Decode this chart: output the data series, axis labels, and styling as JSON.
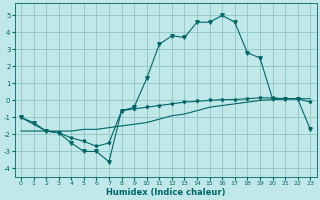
{
  "xlabel": "Humidex (Indice chaleur)",
  "bg_color": "#c0e8e8",
  "grid_color": "#90c4c4",
  "line_color": "#006666",
  "xlim": [
    -0.5,
    23.5
  ],
  "ylim": [
    -4.5,
    5.7
  ],
  "yticks": [
    -4,
    -3,
    -2,
    -1,
    0,
    1,
    2,
    3,
    4,
    5
  ],
  "xticks": [
    0,
    1,
    2,
    3,
    4,
    5,
    6,
    7,
    8,
    9,
    10,
    11,
    12,
    13,
    14,
    15,
    16,
    17,
    18,
    19,
    20,
    21,
    22,
    23
  ],
  "s1_x": [
    0,
    1,
    2,
    3,
    4,
    5,
    6,
    7,
    8,
    9,
    10,
    11,
    12,
    13,
    14,
    15,
    16,
    17,
    18,
    19,
    20,
    21,
    22,
    23
  ],
  "s1_y": [
    -1.0,
    -1.3,
    -1.8,
    -1.9,
    -2.5,
    -3.0,
    -3.0,
    -3.6,
    -0.6,
    -0.4,
    1.3,
    3.3,
    3.8,
    3.7,
    4.6,
    4.6,
    5.0,
    4.6,
    2.8,
    2.5,
    0.1,
    0.1,
    0.1,
    -1.7
  ],
  "s2_x": [
    0,
    1,
    2,
    3,
    4,
    5,
    6,
    7,
    8,
    9,
    10,
    11,
    12,
    13,
    14,
    15,
    16,
    17,
    18,
    19,
    20,
    21,
    22,
    23
  ],
  "s2_y": [
    -1.8,
    -1.8,
    -1.8,
    -1.8,
    -1.8,
    -1.7,
    -1.7,
    -1.6,
    -1.5,
    -1.4,
    -1.3,
    -1.1,
    -0.9,
    -0.8,
    -0.6,
    -0.4,
    -0.3,
    -0.2,
    -0.1,
    0.0,
    0.05,
    0.08,
    0.1,
    0.1
  ],
  "s3_x": [
    0,
    2,
    3,
    4,
    5,
    6,
    7,
    8,
    9,
    10,
    11,
    12,
    13,
    14,
    15,
    16,
    17,
    18,
    19,
    20,
    21,
    22,
    23
  ],
  "s3_y": [
    -1.0,
    -1.8,
    -1.9,
    -2.2,
    -2.4,
    -2.7,
    -2.5,
    -0.6,
    -0.5,
    -0.4,
    -0.3,
    -0.2,
    -0.1,
    -0.05,
    0.0,
    0.05,
    0.05,
    0.1,
    0.15,
    0.15,
    0.1,
    0.1,
    -0.1
  ]
}
